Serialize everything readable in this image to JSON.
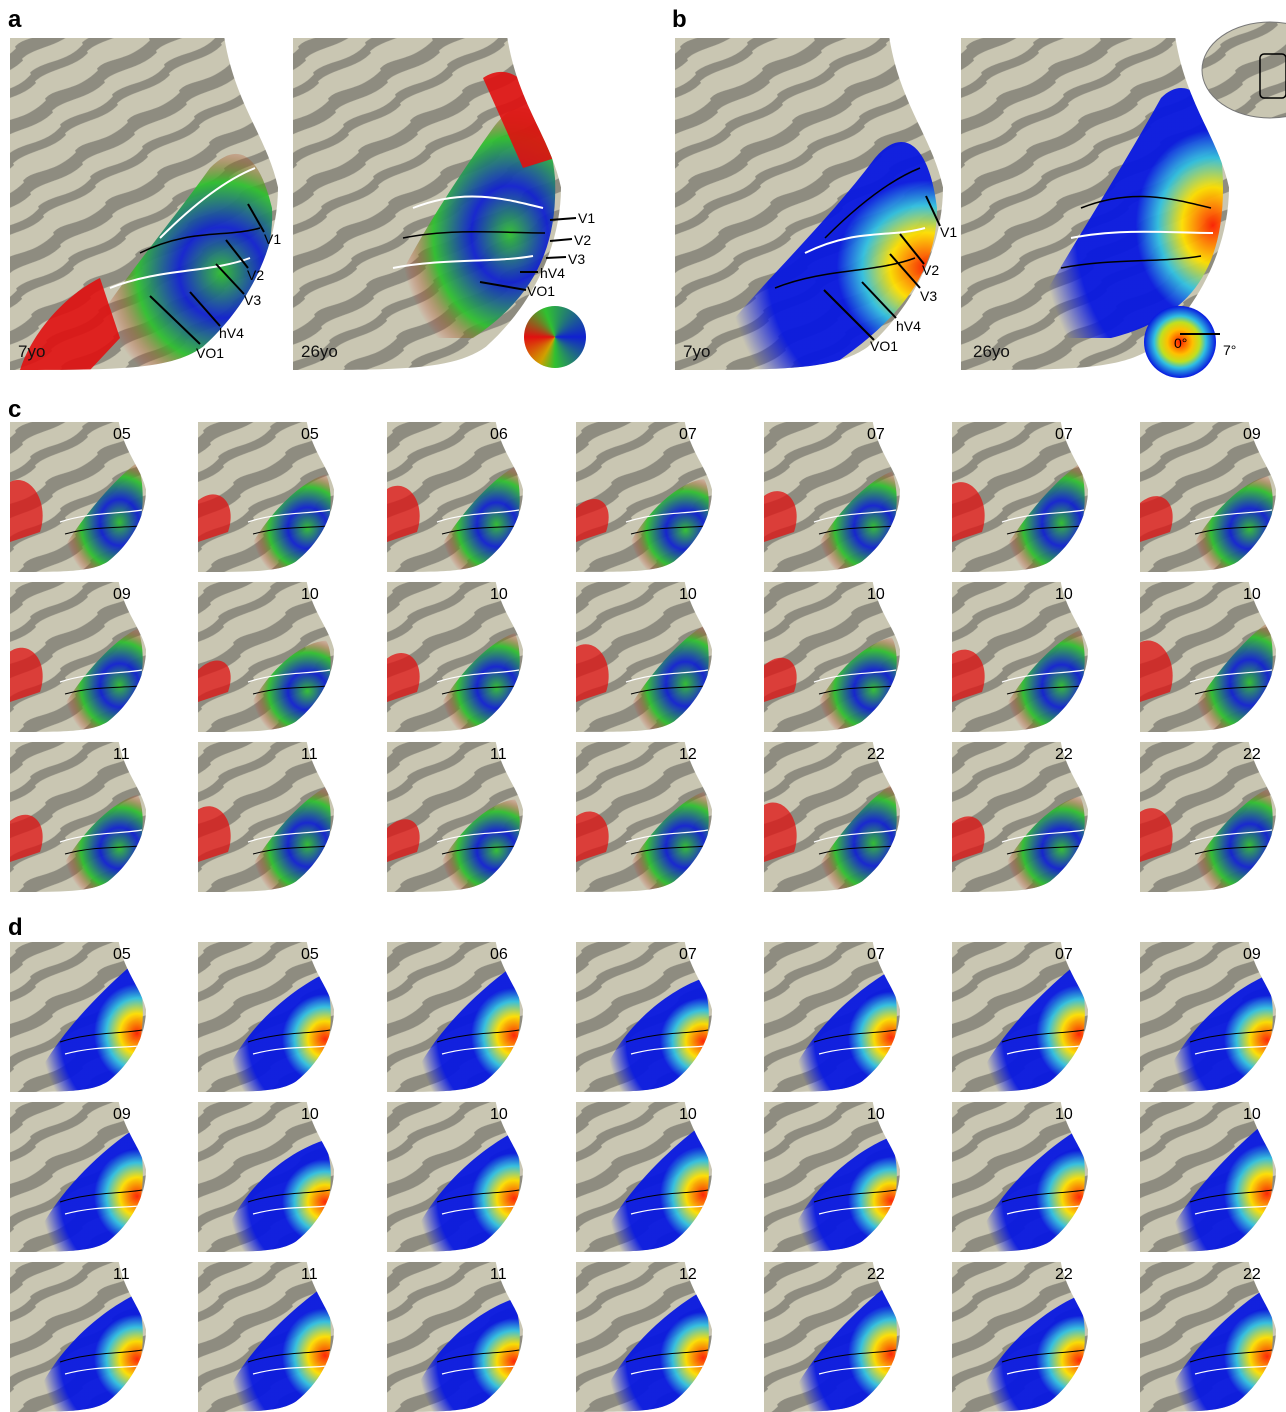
{
  "panels": {
    "a": {
      "letter": "a",
      "left_age": "7yo",
      "right_age": "26yo",
      "left_labels": [
        "V1",
        "V2",
        "V3",
        "hV4",
        "VO1"
      ],
      "right_labels": [
        "V1",
        "V2",
        "V3",
        "hV4",
        "VO1"
      ]
    },
    "b": {
      "letter": "b",
      "left_age": "7yo",
      "right_age": "26yo",
      "left_labels": [
        "V1",
        "V2",
        "V3",
        "hV4",
        "VO1"
      ],
      "eccentricity_center": "0°",
      "eccentricity_edge": "7°"
    },
    "c": {
      "letter": "c",
      "ages": [
        "05",
        "05",
        "06",
        "07",
        "07",
        "07",
        "09",
        "09",
        "10",
        "10",
        "10",
        "10",
        "10",
        "10",
        "11",
        "11",
        "11",
        "12",
        "22",
        "22",
        "22"
      ]
    },
    "d": {
      "letter": "d",
      "ages": [
        "05",
        "05",
        "06",
        "07",
        "07",
        "07",
        "09",
        "09",
        "10",
        "10",
        "10",
        "10",
        "10",
        "10",
        "11",
        "11",
        "11",
        "12",
        "22",
        "22",
        "22"
      ]
    }
  },
  "colors": {
    "cortex_light": "#c9c6b2",
    "cortex_dark": "#8e8c80",
    "polar_red": "#e01010",
    "polar_green": "#30c030",
    "polar_blue": "#1020d0",
    "ecc_red": "#ff2000",
    "ecc_yellow": "#ffe000",
    "ecc_cyan": "#30c0e0",
    "ecc_blue": "#0818e0"
  }
}
